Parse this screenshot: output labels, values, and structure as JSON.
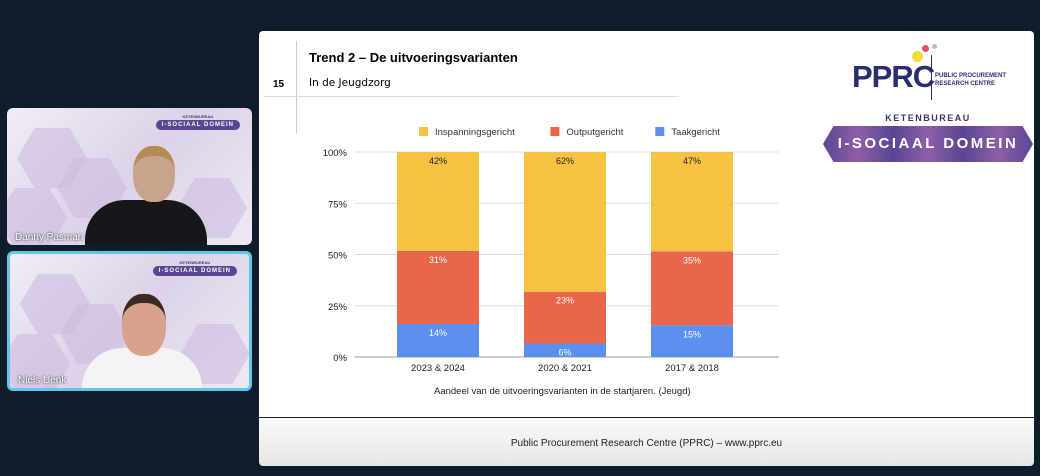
{
  "participants": [
    {
      "name": "Danny Pasman",
      "active": false
    },
    {
      "name": "Niels Uenk",
      "active": true
    }
  ],
  "tile_badge": {
    "top": "KETENBUREAU",
    "main": "I-SOCIAAL DOMEIN"
  },
  "slide": {
    "number": "15",
    "title": "Trend 2 – De uitvoeringsvarianten",
    "subtitle": "In de Jeugdzorg",
    "logo_pprc": {
      "acronym": "PPRC",
      "line1": "PUBLIC PROCUREMENT",
      "line2": "RESEARCH CENTRE"
    },
    "logo_ketenbureau": {
      "top": "KETENBUREAU",
      "main": "I-SOCIAAL DOMEIN"
    },
    "caption": "Aandeel van de uitvoeringsvarianten in de startjaren. (Jeugd)",
    "footer": "Public Procurement Research Centre (PPRC) – www.pprc.eu"
  },
  "chart_data": {
    "type": "bar",
    "stacked": "percent",
    "categories": [
      "2023 & 2024",
      "2020 & 2021",
      "2017 & 2018"
    ],
    "series": [
      {
        "name": "Taakgericht",
        "color": "#5b8ff0",
        "values": [
          14,
          6,
          15
        ],
        "labels": [
          "14%",
          "6%",
          "15%"
        ]
      },
      {
        "name": "Outputgericht",
        "color": "#e8664a",
        "values": [
          31,
          23,
          35
        ],
        "labels": [
          "31%",
          "23%",
          "35%"
        ]
      },
      {
        "name": "Inspanningsgericht",
        "color": "#f5c242",
        "values": [
          42,
          62,
          47
        ],
        "labels": [
          "42%",
          "62%",
          "47%"
        ]
      }
    ],
    "yticks": [
      "0%",
      "25%",
      "50%",
      "75%",
      "100%"
    ],
    "ylim": [
      0,
      100
    ],
    "legend": "top",
    "grid": true
  }
}
